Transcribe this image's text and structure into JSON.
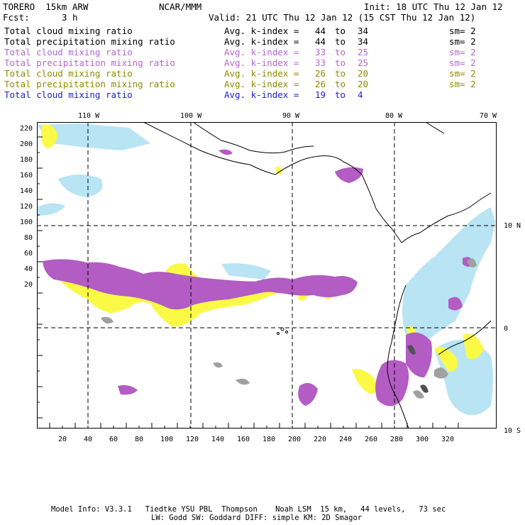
{
  "header": {
    "model": "TORERO  15km ARW",
    "org": "NCAR/MMM",
    "init": "Init: 18 UTC Thu 12 Jan 12",
    "fcst_label": "Fcst:",
    "fcst_value": "3 h",
    "valid": "Valid: 21 UTC Thu 12 Jan 12 (15 CST Thu 12 Jan 12)"
  },
  "legend": [
    {
      "field": "Total cloud mixing ratio",
      "index_label": "Avg. k-index =",
      "from": "44",
      "to_word": "to",
      "to": "34",
      "sm": "sm= 2",
      "color": "#000000"
    },
    {
      "field": "Total precipitation mixing ratio",
      "index_label": "Avg. k-index =",
      "from": "44",
      "to_word": "to",
      "to": "34",
      "sm": "sm= 2",
      "color": "#000000"
    },
    {
      "field": "Total cloud mixing ratio",
      "index_label": "Avg. k-index =",
      "from": "33",
      "to_word": "to",
      "to": "25",
      "sm": "sm= 2",
      "color": "#b368cd"
    },
    {
      "field": "Total precipitation mixing ratio",
      "index_label": "Avg. k-index =",
      "from": "33",
      "to_word": "to",
      "to": "25",
      "sm": "sm= 2",
      "color": "#b368cd"
    },
    {
      "field": "Total cloud mixing ratio",
      "index_label": "Avg. k-index =",
      "from": "26",
      "to_word": "to",
      "to": "20",
      "sm": "sm= 2",
      "color": "#8c8c00"
    },
    {
      "field": "Total precipitation mixing ratio",
      "index_label": "Avg. k-index =",
      "from": "26",
      "to_word": "to",
      "to": "20",
      "sm": "sm= 2",
      "color": "#8c8c00"
    },
    {
      "field": "Total cloud mixing ratio",
      "index_label": "Avg. k-index =",
      "from": "19",
      "to_word": "to",
      "to": "4",
      "sm": "",
      "color": "#1e1ed2"
    }
  ],
  "map": {
    "lon_labels": [
      "110 W",
      "100 W",
      "90 W",
      "80 W",
      "70 W"
    ],
    "lat_labels": [
      "10 N",
      "0",
      "10 S"
    ],
    "x_ticks": [
      "20",
      "40",
      "60",
      "80",
      "100",
      "120",
      "140",
      "160",
      "180",
      "200",
      "220",
      "240",
      "260",
      "280",
      "300",
      "320"
    ],
    "y_ticks": [
      "220",
      "200",
      "180",
      "160",
      "140",
      "120",
      "100",
      "80",
      "60",
      "40",
      "20"
    ],
    "colors": {
      "cloud_cyan": "#b4e6f5",
      "purple": "#b35cc4",
      "yellow": "#fafa46",
      "gray": "#a0a0a0",
      "dark_gray": "#505050",
      "coast": "#000000"
    }
  },
  "footer": {
    "line1": "Model Info: V3.3.1   Tiedtke YSU PBL  Thompson    Noah LSM  15 km,   44 levels,   73 sec",
    "line2": "LW: Godd SW: Goddard DIFF: simple KM: 2D Smagor"
  }
}
